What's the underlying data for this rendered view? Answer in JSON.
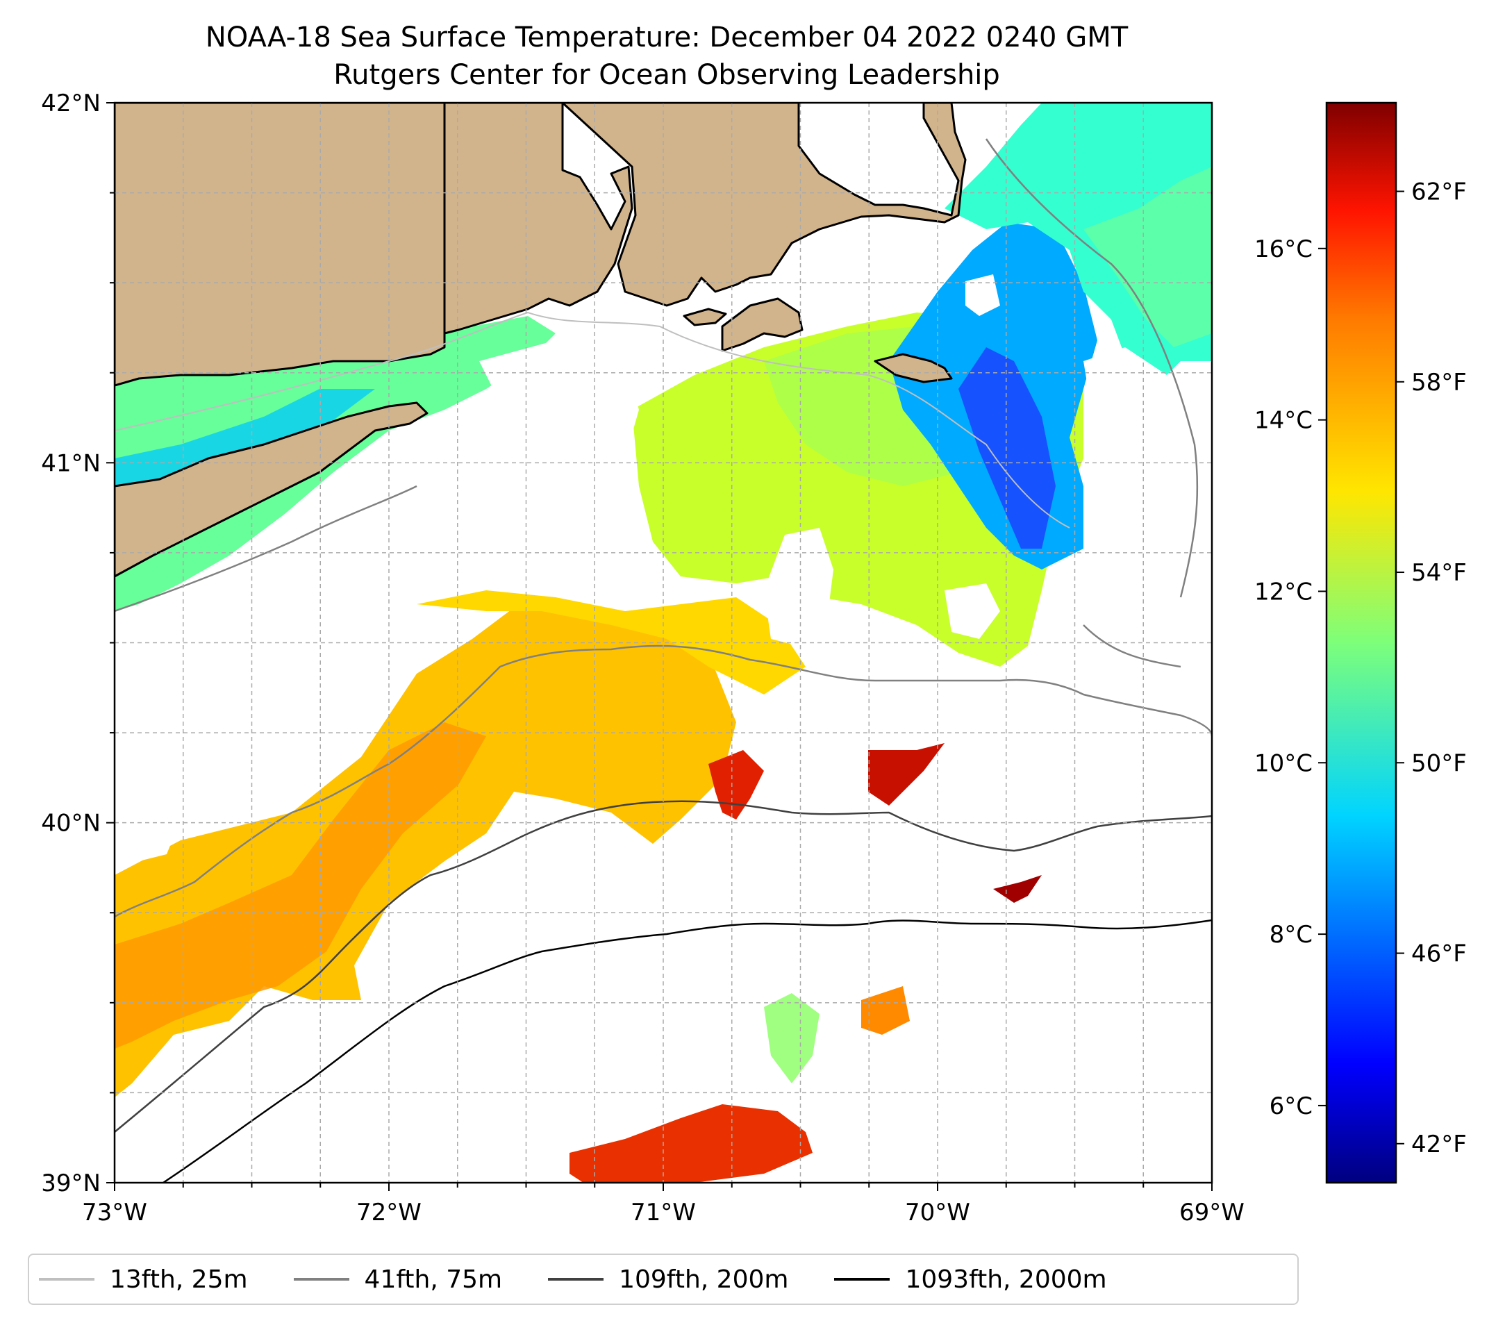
{
  "title": "NOAA-18 Sea Surface Temperature: December 04 2022 0240 GMT",
  "subtitle": "Rutgers Center for Ocean Observing Leadership",
  "map": {
    "lon_range": [
      -73,
      -69
    ],
    "lat_range": [
      39,
      42
    ],
    "x_ticks": [
      {
        "value": -73,
        "label": "73°W"
      },
      {
        "value": -72,
        "label": "72°W"
      },
      {
        "value": -71,
        "label": "71°W"
      },
      {
        "value": -70,
        "label": "70°W"
      },
      {
        "value": -69,
        "label": "69°W"
      }
    ],
    "y_ticks": [
      {
        "value": 39,
        "label": "39°N"
      },
      {
        "value": 40,
        "label": "40°N"
      },
      {
        "value": 41,
        "label": "41°N"
      },
      {
        "value": 42,
        "label": "42°N"
      }
    ],
    "gridlines": true,
    "land_color": "#d2b48c",
    "missing_data_color": "#ffffff",
    "colormap": "jet"
  },
  "colorbar": {
    "celsius_ticks": [
      {
        "value": 6,
        "label": "6°C"
      },
      {
        "value": 8,
        "label": "8°C"
      },
      {
        "value": 10,
        "label": "10°C"
      },
      {
        "value": 12,
        "label": "12°C"
      },
      {
        "value": 14,
        "label": "14°C"
      },
      {
        "value": 16,
        "label": "16°C"
      }
    ],
    "fahrenheit_ticks": [
      {
        "value": 42,
        "label": "42°F"
      },
      {
        "value": 46,
        "label": "46°F"
      },
      {
        "value": 50,
        "label": "50°F"
      },
      {
        "value": 54,
        "label": "54°F"
      },
      {
        "value": 58,
        "label": "58°F"
      },
      {
        "value": 62,
        "label": "62°F"
      }
    ],
    "range_celsius": [
      5.1,
      17.7
    ]
  },
  "legend": {
    "placement": "bottom",
    "items": [
      {
        "label": "13fth, 25m",
        "color": "#bfbfbf"
      },
      {
        "label": "41fth, 75m",
        "color": "#808080"
      },
      {
        "label": "109fth, 200m",
        "color": "#404040"
      },
      {
        "label": "1093fth, 2000m",
        "color": "#000000"
      }
    ]
  }
}
